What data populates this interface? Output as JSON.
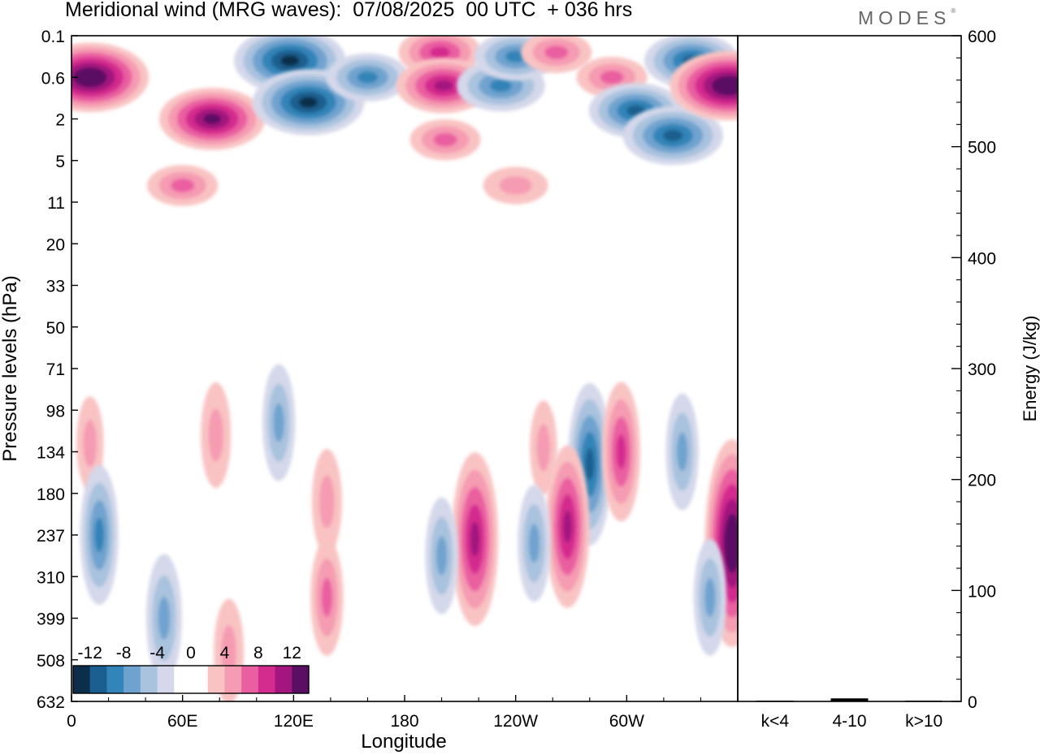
{
  "chart_data": [
    {
      "type": "heatmap",
      "title": "Meridional wind (MRG waves):  07/08/2025  00 UTC  + 036 hrs",
      "xlabel": "Longitude",
      "ylabel": "Pressure levels (hPa)",
      "x_ticks": [
        "0",
        "60E",
        "120E",
        "180",
        "120W",
        "60W"
      ],
      "x_tick_degrees": [
        0,
        60,
        120,
        180,
        240,
        300
      ],
      "x_range_degrees": [
        0,
        360
      ],
      "y_ticks": [
        "0.1",
        "0.6",
        "2",
        "5",
        "11",
        "20",
        "33",
        "50",
        "71",
        "98",
        "134",
        "180",
        "237",
        "310",
        "399",
        "508",
        "632"
      ],
      "colorbar": {
        "tick_labels": [
          "-12",
          "-8",
          "-4",
          "0",
          "4",
          "8",
          "12"
        ],
        "levels": [
          -14,
          -12,
          -10,
          -8,
          -6,
          -4,
          -2,
          0,
          2,
          4,
          6,
          8,
          10,
          12,
          14
        ],
        "colors": [
          "#0d2e4a",
          "#1a5f8f",
          "#3384b8",
          "#6fa3cf",
          "#a9c2de",
          "#d4d8ea",
          "#ffffff",
          "#ffffff",
          "#f9c3c3",
          "#f59bb2",
          "#ea5fa0",
          "#d42b8e",
          "#a3167e",
          "#5a0f63"
        ]
      },
      "features": [
        {
          "lon": 10,
          "level_index": 1.0,
          "value": 14
        },
        {
          "lon": 76,
          "level_index": 2.0,
          "value": 12
        },
        {
          "lon": 60,
          "level_index": 3.6,
          "value": 6
        },
        {
          "lon": 118,
          "level_index": 0.6,
          "value": -13
        },
        {
          "lon": 128,
          "level_index": 1.6,
          "value": -13
        },
        {
          "lon": 160,
          "level_index": 1.0,
          "value": -8
        },
        {
          "lon": 199,
          "level_index": 0.4,
          "value": 8
        },
        {
          "lon": 201,
          "level_index": 1.2,
          "value": 10
        },
        {
          "lon": 202,
          "level_index": 2.5,
          "value": 6
        },
        {
          "lon": 232,
          "level_index": 1.2,
          "value": -9
        },
        {
          "lon": 240,
          "level_index": 0.5,
          "value": -8
        },
        {
          "lon": 262,
          "level_index": 0.4,
          "value": 6
        },
        {
          "lon": 292,
          "level_index": 1.0,
          "value": 6
        },
        {
          "lon": 335,
          "level_index": 0.6,
          "value": -10
        },
        {
          "lon": 305,
          "level_index": 1.8,
          "value": -10
        },
        {
          "lon": 325,
          "level_index": 2.4,
          "value": -11
        },
        {
          "lon": 355,
          "level_index": 1.2,
          "value": 14
        },
        {
          "lon": 240,
          "level_index": 3.6,
          "value": 5
        },
        {
          "lon": 112,
          "level_index": 9.3,
          "value": -6
        },
        {
          "lon": 78,
          "level_index": 9.6,
          "value": 5
        },
        {
          "lon": 10,
          "level_index": 9.8,
          "value": 4
        },
        {
          "lon": 255,
          "level_index": 9.9,
          "value": 4
        },
        {
          "lon": 280,
          "level_index": 10.3,
          "value": -10
        },
        {
          "lon": 297,
          "level_index": 10.0,
          "value": 8
        },
        {
          "lon": 330,
          "level_index": 10.0,
          "value": -6
        },
        {
          "lon": 138,
          "level_index": 11.2,
          "value": 5
        },
        {
          "lon": 15,
          "level_index": 12.0,
          "value": -8
        },
        {
          "lon": 218,
          "level_index": 12.1,
          "value": 11
        },
        {
          "lon": 268,
          "level_index": 11.8,
          "value": 10
        },
        {
          "lon": 250,
          "level_index": 12.2,
          "value": -6
        },
        {
          "lon": 357,
          "level_index": 12.2,
          "value": 14
        },
        {
          "lon": 138,
          "level_index": 13.5,
          "value": 6
        },
        {
          "lon": 50,
          "level_index": 14.0,
          "value": -7
        },
        {
          "lon": 85,
          "level_index": 14.8,
          "value": 5
        },
        {
          "lon": 345,
          "level_index": 13.5,
          "value": -6
        },
        {
          "lon": 200,
          "level_index": 12.5,
          "value": -6
        }
      ]
    },
    {
      "type": "bar",
      "categories": [
        "k<4",
        "4-10",
        "k>10"
      ],
      "values": [
        0,
        2,
        0
      ],
      "ylabel": "Energy (J/kg)",
      "ylim": [
        0,
        600
      ],
      "y_ticks": [
        "0",
        "100",
        "200",
        "300",
        "400",
        "500",
        "600"
      ]
    }
  ],
  "header": {
    "title": "Meridional wind (MRG waves):  07/08/2025  00 UTC  + 036 hrs",
    "logo": "MODES"
  }
}
